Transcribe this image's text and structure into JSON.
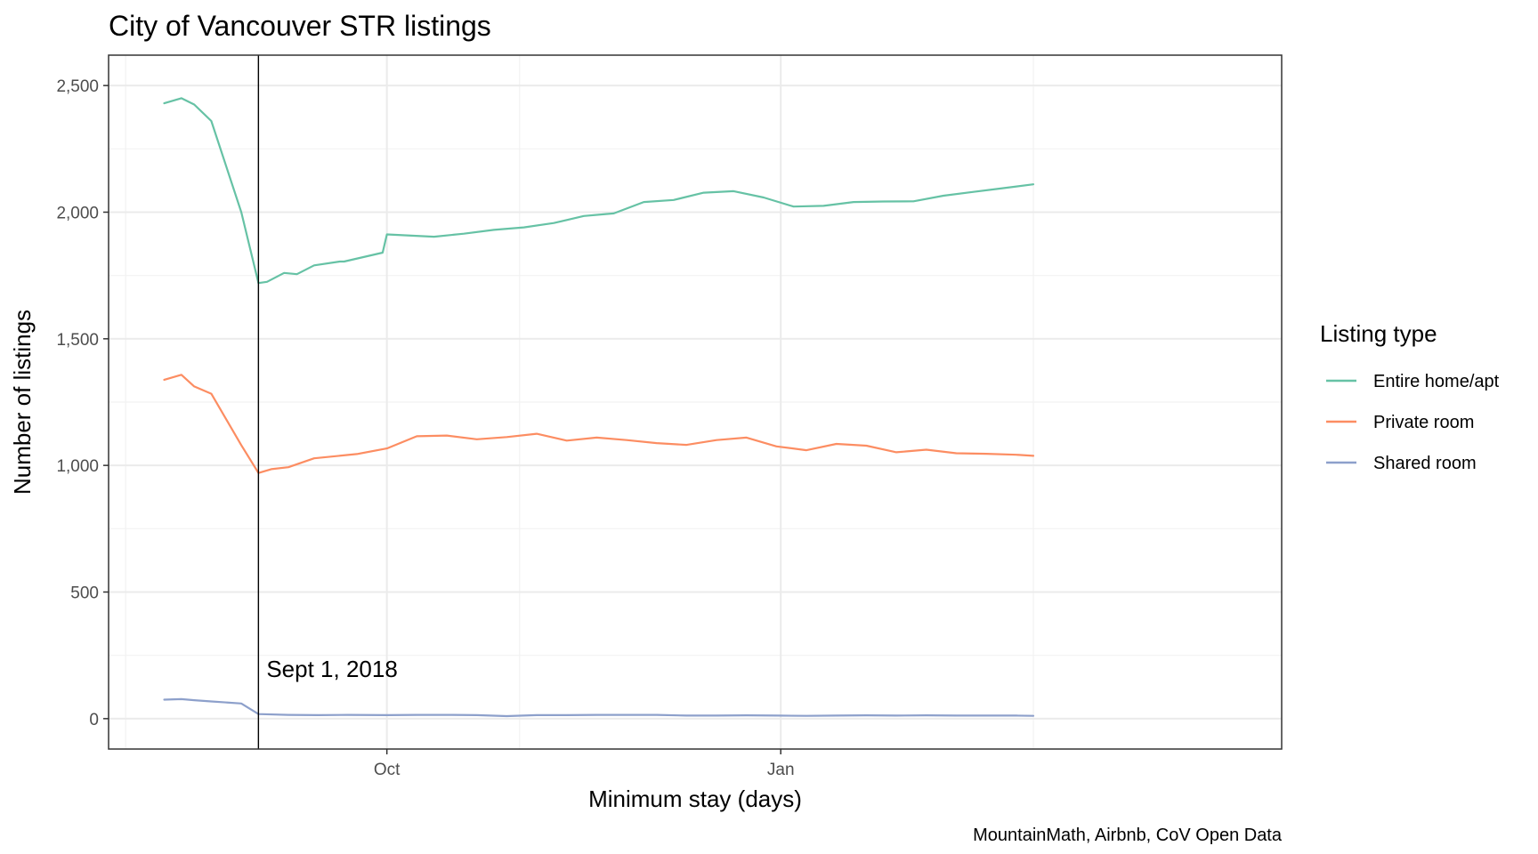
{
  "chart_data": {
    "type": "line",
    "title": "City of Vancouver STR listings",
    "xlabel": "Minimum stay (days)",
    "ylabel": "Number of listings",
    "caption": "MountainMath, Airbnb, CoV Open Data",
    "xlim": [
      "2018-07-28",
      "2019-04-28"
    ],
    "ylim": [
      -120,
      2620
    ],
    "x_ticks": [
      {
        "date": "2018-10-01",
        "label": "Oct"
      },
      {
        "date": "2019-01-01",
        "label": "Jan"
      }
    ],
    "x_minor_ticks": [
      "2018-08-01",
      "2018-11-01",
      "2019-03-01"
    ],
    "y_ticks": [
      {
        "value": 0,
        "label": "0"
      },
      {
        "value": 500,
        "label": "500"
      },
      {
        "value": 1000,
        "label": "1,000"
      },
      {
        "value": 1500,
        "label": "1,500"
      },
      {
        "value": 2000,
        "label": "2,000"
      },
      {
        "value": 2500,
        "label": "2,500"
      }
    ],
    "y_minor_ticks": [
      250,
      750,
      1250,
      1750,
      2250
    ],
    "grid": true,
    "legend": {
      "title": "Listing type",
      "position": "right"
    },
    "annotation": {
      "label": "Sept 1, 2018",
      "date": "2018-09-01"
    },
    "series": [
      {
        "name": "Entire home/apt",
        "color": "#66c2a5",
        "points": [
          [
            "2018-08-10",
            2430
          ],
          [
            "2018-08-14",
            2450
          ],
          [
            "2018-08-17",
            2425
          ],
          [
            "2018-08-21",
            2360
          ],
          [
            "2018-08-28",
            2000
          ],
          [
            "2018-09-01",
            1720
          ],
          [
            "2018-09-03",
            1725
          ],
          [
            "2018-09-07",
            1760
          ],
          [
            "2018-09-10",
            1755
          ],
          [
            "2018-09-14",
            1790
          ],
          [
            "2018-09-21",
            1805
          ],
          [
            "2018-09-30",
            1840
          ],
          [
            "2018-09-20",
            1805
          ],
          [
            "2018-10-01",
            1912
          ],
          [
            "2018-10-12",
            1903
          ],
          [
            "2018-10-19",
            1915
          ],
          [
            "2018-10-26",
            1930
          ],
          [
            "2018-11-02",
            1940
          ],
          [
            "2018-11-09",
            1957
          ],
          [
            "2018-11-16",
            1985
          ],
          [
            "2018-11-23",
            1995
          ],
          [
            "2018-11-30",
            2040
          ],
          [
            "2018-12-07",
            2048
          ],
          [
            "2018-12-14",
            2077
          ],
          [
            "2018-12-21",
            2083
          ],
          [
            "2018-12-28",
            2058
          ],
          [
            "2019-01-04",
            2022
          ],
          [
            "2019-01-11",
            2025
          ],
          [
            "2019-01-18",
            2040
          ],
          [
            "2019-01-25",
            2042
          ],
          [
            "2019-02-01",
            2043
          ],
          [
            "2019-02-08",
            2065
          ],
          [
            "2019-02-15",
            2080
          ],
          [
            "2019-02-22",
            2095
          ],
          [
            "2019-03-01",
            2110
          ]
        ]
      },
      {
        "name": "Private room",
        "color": "#fc8d62",
        "points": [
          [
            "2018-08-10",
            1338
          ],
          [
            "2018-08-14",
            1358
          ],
          [
            "2018-08-17",
            1312
          ],
          [
            "2018-08-21",
            1283
          ],
          [
            "2018-08-28",
            1080
          ],
          [
            "2018-09-01",
            970
          ],
          [
            "2018-09-04",
            985
          ],
          [
            "2018-09-08",
            993
          ],
          [
            "2018-09-14",
            1028
          ],
          [
            "2018-09-24",
            1045
          ],
          [
            "2018-10-01",
            1067
          ],
          [
            "2018-10-08",
            1115
          ],
          [
            "2018-10-15",
            1118
          ],
          [
            "2018-10-22",
            1103
          ],
          [
            "2018-10-29",
            1112
          ],
          [
            "2018-11-05",
            1125
          ],
          [
            "2018-11-12",
            1098
          ],
          [
            "2018-11-19",
            1110
          ],
          [
            "2018-11-26",
            1100
          ],
          [
            "2018-12-03",
            1088
          ],
          [
            "2018-12-10",
            1081
          ],
          [
            "2018-12-17",
            1100
          ],
          [
            "2018-12-24",
            1110
          ],
          [
            "2018-12-31",
            1075
          ],
          [
            "2019-01-07",
            1060
          ],
          [
            "2019-01-14",
            1085
          ],
          [
            "2019-01-21",
            1078
          ],
          [
            "2019-01-28",
            1052
          ],
          [
            "2019-02-04",
            1062
          ],
          [
            "2019-02-11",
            1048
          ],
          [
            "2019-02-18",
            1046
          ],
          [
            "2019-02-25",
            1042
          ],
          [
            "2019-03-01",
            1038
          ]
        ]
      },
      {
        "name": "Shared room",
        "color": "#8da0cb",
        "points": [
          [
            "2018-08-10",
            75
          ],
          [
            "2018-08-14",
            77
          ],
          [
            "2018-08-17",
            73
          ],
          [
            "2018-08-21",
            68
          ],
          [
            "2018-08-28",
            60
          ],
          [
            "2018-09-01",
            18
          ],
          [
            "2018-09-08",
            15
          ],
          [
            "2018-09-15",
            14
          ],
          [
            "2018-09-22",
            15
          ],
          [
            "2018-10-01",
            14
          ],
          [
            "2018-10-08",
            15
          ],
          [
            "2018-10-15",
            15
          ],
          [
            "2018-10-22",
            14
          ],
          [
            "2018-10-29",
            10
          ],
          [
            "2018-11-05",
            14
          ],
          [
            "2018-11-12",
            14
          ],
          [
            "2018-11-19",
            15
          ],
          [
            "2018-11-26",
            15
          ],
          [
            "2018-12-03",
            15
          ],
          [
            "2018-12-10",
            12
          ],
          [
            "2018-12-17",
            12
          ],
          [
            "2018-12-24",
            13
          ],
          [
            "2018-12-31",
            12
          ],
          [
            "2019-01-07",
            11
          ],
          [
            "2019-01-14",
            12
          ],
          [
            "2019-01-21",
            13
          ],
          [
            "2019-01-28",
            12
          ],
          [
            "2019-02-04",
            13
          ],
          [
            "2019-02-11",
            12
          ],
          [
            "2019-02-18",
            12
          ],
          [
            "2019-02-25",
            12
          ],
          [
            "2019-03-01",
            11
          ]
        ]
      }
    ]
  }
}
